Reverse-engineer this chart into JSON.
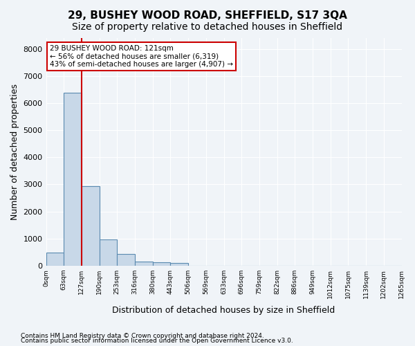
{
  "title": "29, BUSHEY WOOD ROAD, SHEFFIELD, S17 3QA",
  "subtitle": "Size of property relative to detached houses in Sheffield",
  "xlabel": "Distribution of detached houses by size in Sheffield",
  "ylabel": "Number of detached properties",
  "footnote1": "Contains HM Land Registry data © Crown copyright and database right 2024.",
  "footnote2": "Contains public sector information licensed under the Open Government Licence v3.0.",
  "annotation_line1": "29 BUSHEY WOOD ROAD: 121sqm",
  "annotation_line2": "← 56% of detached houses are smaller (6,319)",
  "annotation_line3": "43% of semi-detached houses are larger (4,907) →",
  "bar_values": [
    480,
    6370,
    2940,
    980,
    430,
    160,
    130,
    90,
    0,
    0,
    0,
    0,
    0,
    0,
    0,
    0,
    0,
    0,
    0,
    0
  ],
  "categories": [
    "0sqm",
    "63sqm",
    "127sqm",
    "190sqm",
    "253sqm",
    "316sqm",
    "380sqm",
    "443sqm",
    "506sqm",
    "569sqm",
    "633sqm",
    "696sqm",
    "759sqm",
    "822sqm",
    "886sqm",
    "949sqm",
    "1012sqm",
    "1075sqm",
    "1139sqm",
    "1202sqm",
    "1265sqm"
  ],
  "bar_color": "#c8d8e8",
  "bar_edge_color": "#5a8ab0",
  "vline_color": "#cc0000",
  "annotation_box_color": "#cc0000",
  "ylim": [
    0,
    8400
  ],
  "yticks": [
    0,
    1000,
    2000,
    3000,
    4000,
    5000,
    6000,
    7000,
    8000
  ],
  "bg_color": "#f0f4f8",
  "grid_color": "#ffffff",
  "title_fontsize": 11,
  "subtitle_fontsize": 10,
  "xlabel_fontsize": 9,
  "ylabel_fontsize": 9
}
